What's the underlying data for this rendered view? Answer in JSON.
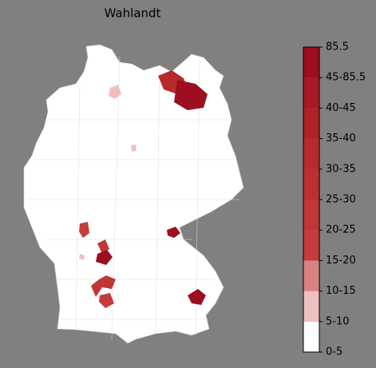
{
  "title": "Wahlandt",
  "colorbar": {
    "labels": [
      "0-5",
      "5-10",
      "10-15",
      "15-20",
      "20-25",
      "25-30",
      "30-35",
      "35-40",
      "40-45",
      "45-85.5",
      "85.5"
    ],
    "colors": [
      "#ffffff",
      "#efc0c0",
      "#d98282",
      "#c43c3c",
      "#c13636",
      "#bd3030",
      "#b82a2e",
      "#b02228",
      "#a71a25",
      "#9c0e20"
    ]
  }
}
